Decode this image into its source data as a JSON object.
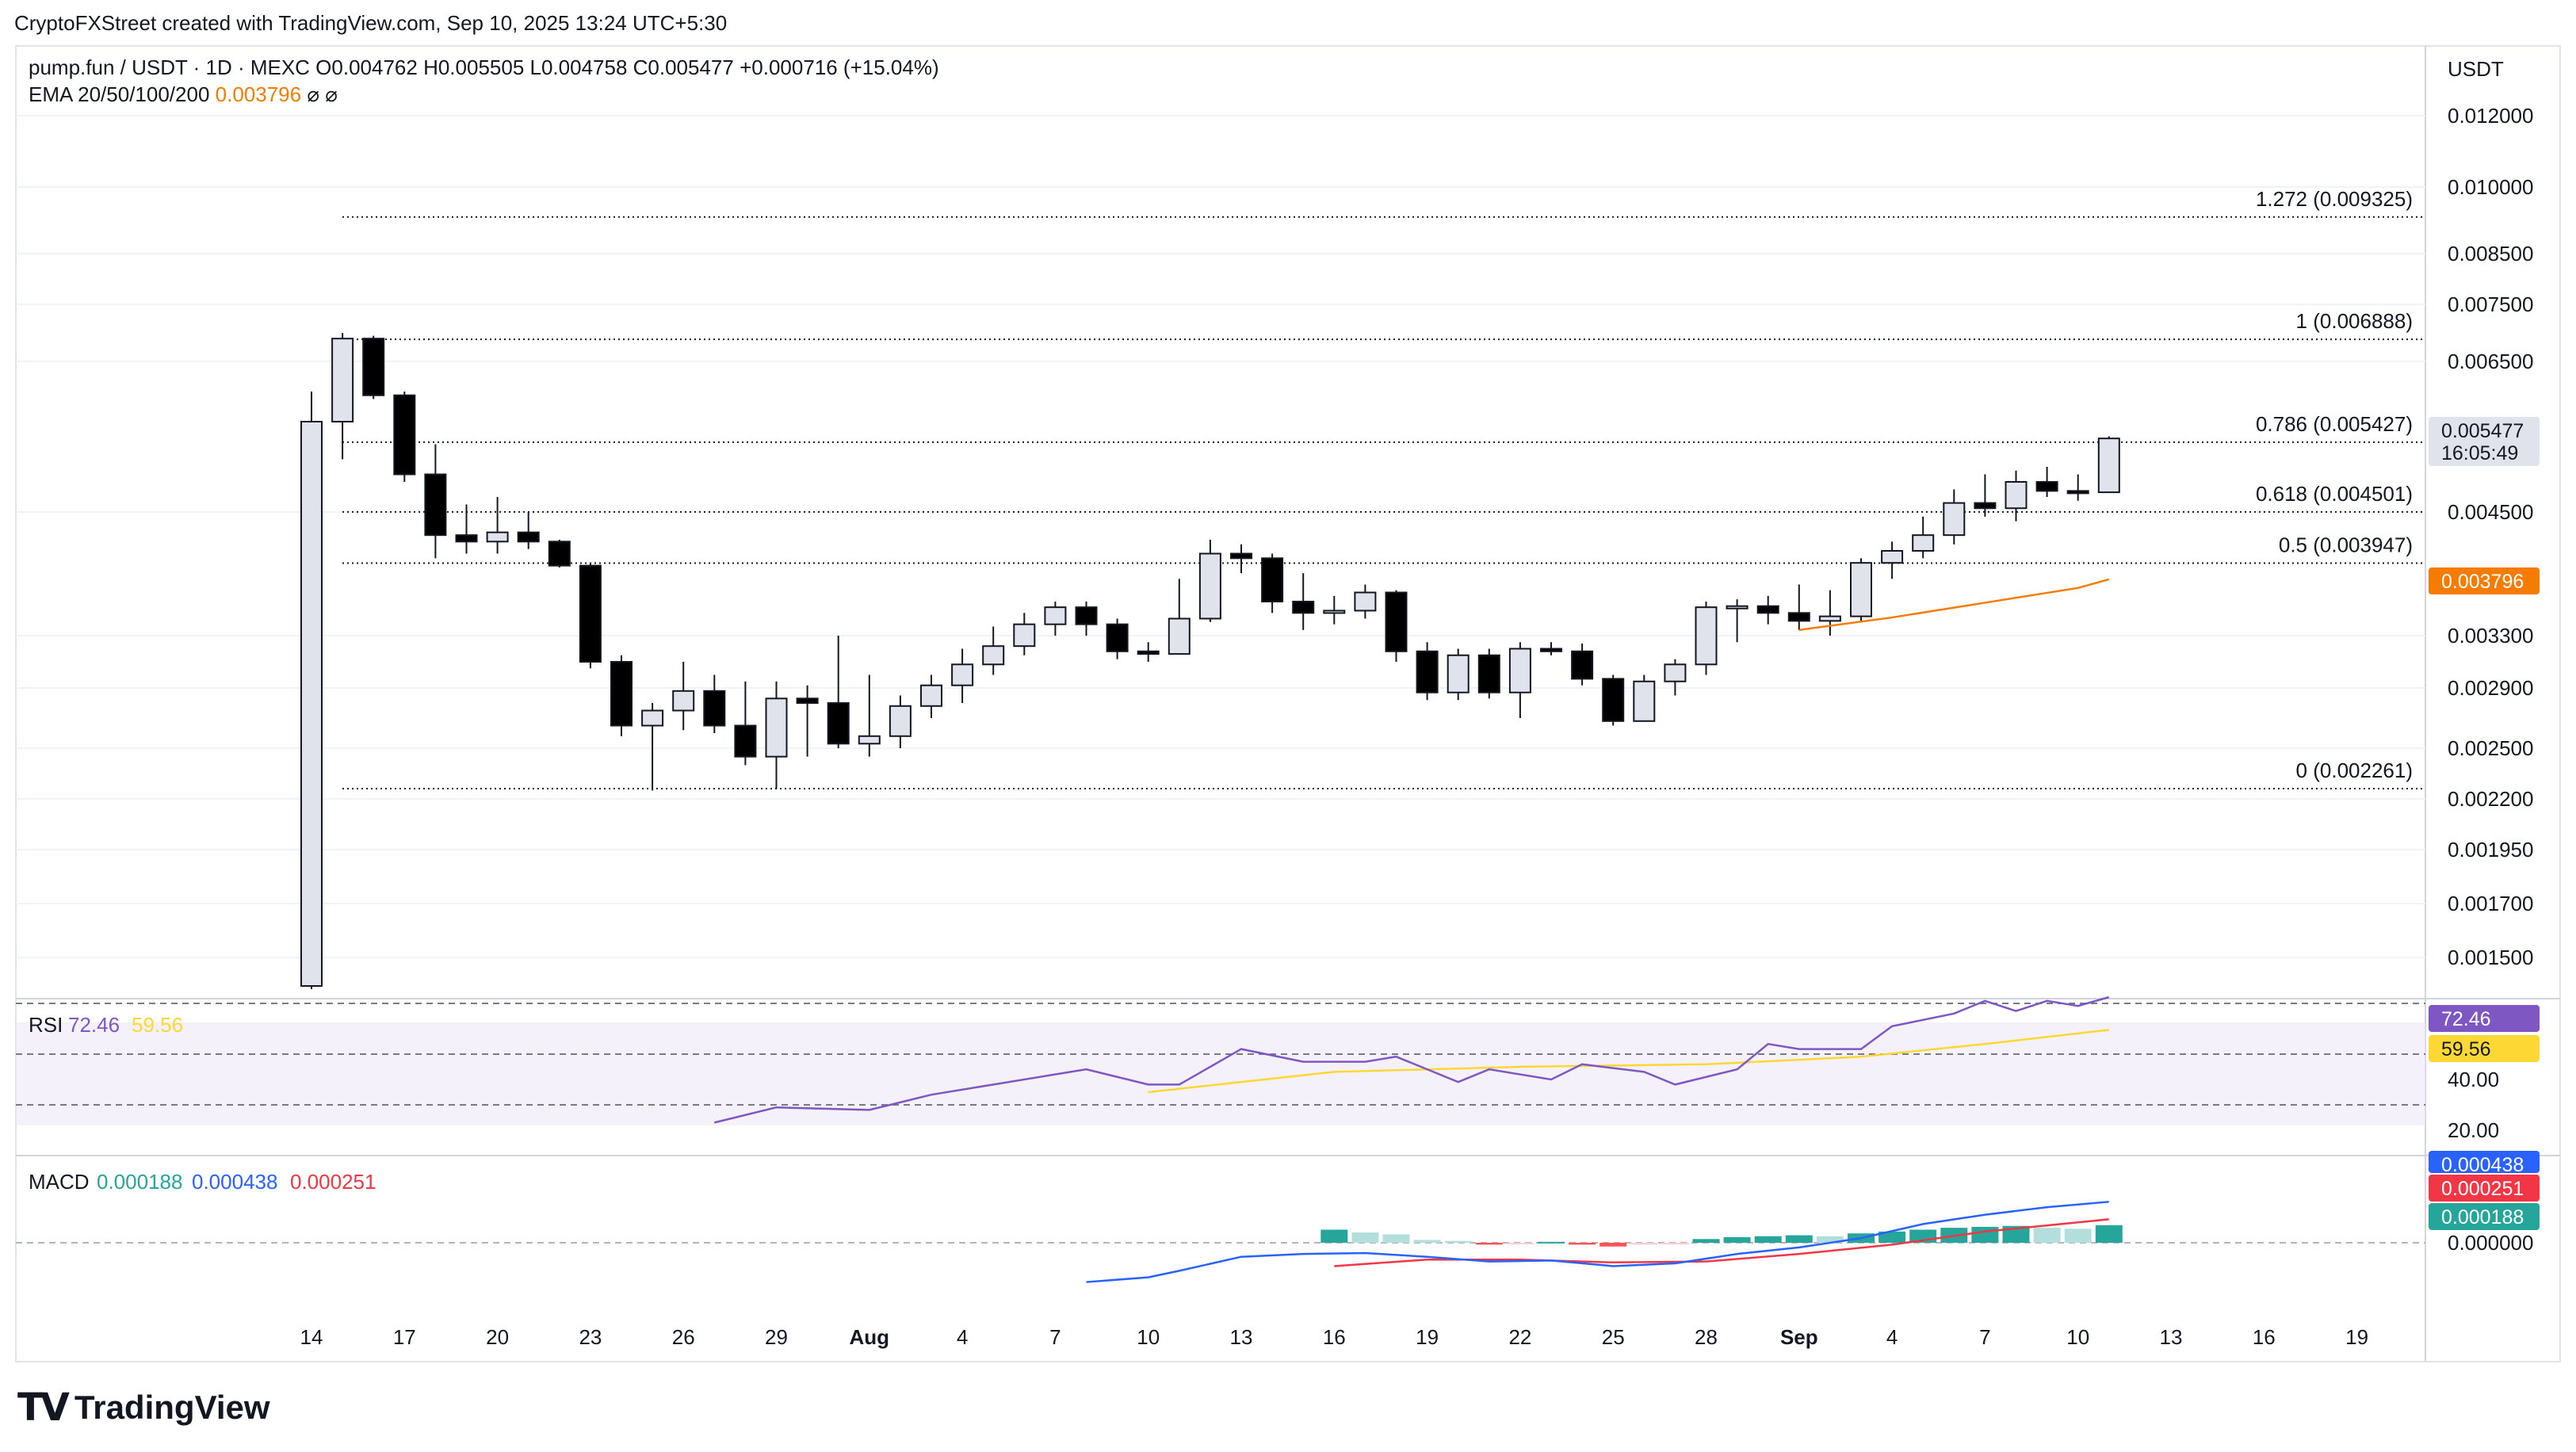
{
  "credit": "CryptoFXStreet created with TradingView.com, Sep 10, 2025 13:24 UTC+5:30",
  "header": {
    "symbol_line": "pump.fun / USDT · 1D · MEXC  O0.004762  H0.005505  L0.004758  C0.005477  +0.000716 (+15.04%)",
    "ema_label": "EMA 20/50/100/200",
    "ema_value": "0.003796",
    "ema_flags": "⌀  ⌀"
  },
  "currency_label": "USDT",
  "brand": "TradingView",
  "colors": {
    "up_candle": "#e0e3eb",
    "down_candle": "#000000",
    "ema_line": "#f57c00",
    "rsi_line": "#7e57c2",
    "rsi_ma": "#fdd835",
    "macd_line": "#2962ff",
    "signal_line": "#f23645",
    "hist_up_strong": "#26a69a",
    "hist_up_weak": "#b2dfdb",
    "hist_down_strong": "#ff5252",
    "hist_down_weak": "#ffcdd2"
  },
  "chart_data": [
    {
      "type": "candlestick",
      "title": "pump.fun / USDT · 1D · MEXC",
      "price_axis_labels": [
        "0.012000",
        "0.010000",
        "0.008500",
        "0.007500",
        "0.006500",
        "0.004500",
        "0.003300",
        "0.002900",
        "0.002500",
        "0.002200",
        "0.001950",
        "0.001700",
        "0.001500"
      ],
      "x_tick_labels": [
        "14",
        "17",
        "20",
        "23",
        "26",
        "29",
        "Aug",
        "4",
        "7",
        "10",
        "13",
        "16",
        "19",
        "22",
        "25",
        "28",
        "Sep",
        "4",
        "7",
        "10",
        "13",
        "16",
        "19"
      ],
      "last_price": "0.005477",
      "countdown": "16:05:49",
      "ema_label_value": "0.003796",
      "fibonacci": [
        {
          "label": "1.272 (0.009325)",
          "value": 0.009325
        },
        {
          "label": "1 (0.006888)",
          "value": 0.006888
        },
        {
          "label": "0.786 (0.005427)",
          "value": 0.005427
        },
        {
          "label": "0.618 (0.004501)",
          "value": 0.004501
        },
        {
          "label": "0.5 (0.003947)",
          "value": 0.003947
        },
        {
          "label": "0 (0.002261)",
          "value": 0.002261
        }
      ],
      "candles": [
        {
          "date": "2025-07-14",
          "o": 0.00132,
          "h": 0.0061,
          "l": 0.0013,
          "c": 0.0057
        },
        {
          "date": "2025-07-15",
          "o": 0.0057,
          "h": 0.007,
          "l": 0.0052,
          "c": 0.0069
        },
        {
          "date": "2025-07-16",
          "o": 0.0069,
          "h": 0.00695,
          "l": 0.006,
          "c": 0.00605
        },
        {
          "date": "2025-07-17",
          "o": 0.00605,
          "h": 0.0061,
          "l": 0.0049,
          "c": 0.005
        },
        {
          "date": "2025-07-18",
          "o": 0.005,
          "h": 0.0054,
          "l": 0.004,
          "c": 0.00425
        },
        {
          "date": "2025-07-19",
          "o": 0.00425,
          "h": 0.0046,
          "l": 0.00405,
          "c": 0.00418
        },
        {
          "date": "2025-07-20",
          "o": 0.00418,
          "h": 0.0047,
          "l": 0.00405,
          "c": 0.00428
        },
        {
          "date": "2025-07-21",
          "o": 0.00428,
          "h": 0.0045,
          "l": 0.0041,
          "c": 0.00418
        },
        {
          "date": "2025-07-22",
          "o": 0.00418,
          "h": 0.0042,
          "l": 0.0039,
          "c": 0.00392
        },
        {
          "date": "2025-07-23",
          "o": 0.00392,
          "h": 0.00395,
          "l": 0.00305,
          "c": 0.0031
        },
        {
          "date": "2025-07-24",
          "o": 0.0031,
          "h": 0.00315,
          "l": 0.00258,
          "c": 0.00265
        },
        {
          "date": "2025-07-25",
          "o": 0.00265,
          "h": 0.0028,
          "l": 0.00225,
          "c": 0.00275
        },
        {
          "date": "2025-07-26",
          "o": 0.00275,
          "h": 0.0031,
          "l": 0.00262,
          "c": 0.00288
        },
        {
          "date": "2025-07-27",
          "o": 0.00288,
          "h": 0.003,
          "l": 0.0026,
          "c": 0.00265
        },
        {
          "date": "2025-07-28",
          "o": 0.00265,
          "h": 0.00295,
          "l": 0.0024,
          "c": 0.00245
        },
        {
          "date": "2025-07-29",
          "o": 0.00245,
          "h": 0.00295,
          "l": 0.00226,
          "c": 0.00283
        },
        {
          "date": "2025-07-30",
          "o": 0.00283,
          "h": 0.00292,
          "l": 0.00245,
          "c": 0.0028
        },
        {
          "date": "2025-07-31",
          "o": 0.0028,
          "h": 0.0033,
          "l": 0.0025,
          "c": 0.00253
        },
        {
          "date": "2025-08-01",
          "o": 0.00253,
          "h": 0.003,
          "l": 0.00245,
          "c": 0.00258
        },
        {
          "date": "2025-08-02",
          "o": 0.00258,
          "h": 0.00285,
          "l": 0.0025,
          "c": 0.00278
        },
        {
          "date": "2025-08-03",
          "o": 0.00278,
          "h": 0.003,
          "l": 0.0027,
          "c": 0.00292
        },
        {
          "date": "2025-08-04",
          "o": 0.00292,
          "h": 0.0032,
          "l": 0.0028,
          "c": 0.00308
        },
        {
          "date": "2025-08-05",
          "o": 0.00308,
          "h": 0.00338,
          "l": 0.003,
          "c": 0.00322
        },
        {
          "date": "2025-08-06",
          "o": 0.00322,
          "h": 0.0035,
          "l": 0.00315,
          "c": 0.0034
        },
        {
          "date": "2025-08-07",
          "o": 0.0034,
          "h": 0.0036,
          "l": 0.0033,
          "c": 0.00355
        },
        {
          "date": "2025-08-08",
          "o": 0.00355,
          "h": 0.0036,
          "l": 0.0033,
          "c": 0.0034
        },
        {
          "date": "2025-08-09",
          "o": 0.0034,
          "h": 0.00345,
          "l": 0.00312,
          "c": 0.00318
        },
        {
          "date": "2025-08-10",
          "o": 0.00318,
          "h": 0.00325,
          "l": 0.0031,
          "c": 0.00316
        },
        {
          "date": "2025-08-11",
          "o": 0.00316,
          "h": 0.0038,
          "l": 0.00316,
          "c": 0.00345
        },
        {
          "date": "2025-08-12",
          "o": 0.00345,
          "h": 0.0042,
          "l": 0.00342,
          "c": 0.00405
        },
        {
          "date": "2025-08-13",
          "o": 0.00405,
          "h": 0.00415,
          "l": 0.00385,
          "c": 0.004
        },
        {
          "date": "2025-08-14",
          "o": 0.004,
          "h": 0.00405,
          "l": 0.0035,
          "c": 0.0036
        },
        {
          "date": "2025-08-15",
          "o": 0.0036,
          "h": 0.00385,
          "l": 0.00335,
          "c": 0.0035
        },
        {
          "date": "2025-08-16",
          "o": 0.0035,
          "h": 0.00365,
          "l": 0.0034,
          "c": 0.00352
        },
        {
          "date": "2025-08-17",
          "o": 0.00352,
          "h": 0.00375,
          "l": 0.00345,
          "c": 0.00368
        },
        {
          "date": "2025-08-18",
          "o": 0.00368,
          "h": 0.0037,
          "l": 0.0031,
          "c": 0.00318
        },
        {
          "date": "2025-08-19",
          "o": 0.00318,
          "h": 0.00325,
          "l": 0.00282,
          "c": 0.00287
        },
        {
          "date": "2025-08-20",
          "o": 0.00287,
          "h": 0.0032,
          "l": 0.00282,
          "c": 0.00315
        },
        {
          "date": "2025-08-21",
          "o": 0.00315,
          "h": 0.0032,
          "l": 0.00283,
          "c": 0.00287
        },
        {
          "date": "2025-08-22",
          "o": 0.00287,
          "h": 0.00325,
          "l": 0.0027,
          "c": 0.0032
        },
        {
          "date": "2025-08-23",
          "o": 0.0032,
          "h": 0.00325,
          "l": 0.00315,
          "c": 0.00318
        },
        {
          "date": "2025-08-24",
          "o": 0.00318,
          "h": 0.00324,
          "l": 0.00292,
          "c": 0.00297
        },
        {
          "date": "2025-08-25",
          "o": 0.00297,
          "h": 0.003,
          "l": 0.00265,
          "c": 0.00268
        },
        {
          "date": "2025-08-26",
          "o": 0.00268,
          "h": 0.003,
          "l": 0.00268,
          "c": 0.00295
        },
        {
          "date": "2025-08-27",
          "o": 0.00295,
          "h": 0.00312,
          "l": 0.00285,
          "c": 0.00308
        },
        {
          "date": "2025-08-28",
          "o": 0.00308,
          "h": 0.0036,
          "l": 0.003,
          "c": 0.00355
        },
        {
          "date": "2025-08-29",
          "o": 0.00355,
          "h": 0.00362,
          "l": 0.00325,
          "c": 0.00356
        },
        {
          "date": "2025-08-30",
          "o": 0.00356,
          "h": 0.00365,
          "l": 0.0034,
          "c": 0.0035
        },
        {
          "date": "2025-08-31",
          "o": 0.0035,
          "h": 0.00375,
          "l": 0.00335,
          "c": 0.00343
        },
        {
          "date": "2025-09-01",
          "o": 0.00343,
          "h": 0.0037,
          "l": 0.0033,
          "c": 0.00347
        },
        {
          "date": "2025-09-02",
          "o": 0.00347,
          "h": 0.004,
          "l": 0.00342,
          "c": 0.00395
        },
        {
          "date": "2025-09-03",
          "o": 0.00395,
          "h": 0.00418,
          "l": 0.0038,
          "c": 0.00408
        },
        {
          "date": "2025-09-04",
          "o": 0.00408,
          "h": 0.00445,
          "l": 0.004,
          "c": 0.00425
        },
        {
          "date": "2025-09-05",
          "o": 0.00425,
          "h": 0.0048,
          "l": 0.00415,
          "c": 0.00462
        },
        {
          "date": "2025-09-06",
          "o": 0.00462,
          "h": 0.005,
          "l": 0.00445,
          "c": 0.00455
        },
        {
          "date": "2025-09-07",
          "o": 0.00455,
          "h": 0.00505,
          "l": 0.0044,
          "c": 0.0049
        },
        {
          "date": "2025-09-08",
          "o": 0.0049,
          "h": 0.0051,
          "l": 0.0047,
          "c": 0.00478
        },
        {
          "date": "2025-09-09",
          "o": 0.00478,
          "h": 0.005,
          "l": 0.00465,
          "c": 0.00476
        },
        {
          "date": "2025-09-10",
          "o": 0.004762,
          "h": 0.005505,
          "l": 0.004758,
          "c": 0.005477
        }
      ],
      "ema20": [
        {
          "date": "2025-08-31",
          "v": 0.00335
        },
        {
          "date": "2025-09-03",
          "v": 0.00346
        },
        {
          "date": "2025-09-06",
          "v": 0.00359
        },
        {
          "date": "2025-09-09",
          "v": 0.00372
        },
        {
          "date": "2025-09-10",
          "v": 0.003796
        }
      ]
    },
    {
      "type": "line",
      "title": "RSI",
      "rsi_value": "72.46",
      "ma_value": "59.56",
      "y_tick_labels": [
        "40.00",
        "20.00"
      ],
      "bands": [
        70,
        50,
        30
      ],
      "rsi": [
        {
          "date": "2025-07-27",
          "v": 23
        },
        {
          "date": "2025-07-29",
          "v": 29
        },
        {
          "date": "2025-08-01",
          "v": 28
        },
        {
          "date": "2025-08-03",
          "v": 34
        },
        {
          "date": "2025-08-05",
          "v": 38
        },
        {
          "date": "2025-08-08",
          "v": 44
        },
        {
          "date": "2025-08-10",
          "v": 38
        },
        {
          "date": "2025-08-11",
          "v": 38
        },
        {
          "date": "2025-08-13",
          "v": 52
        },
        {
          "date": "2025-08-15",
          "v": 47
        },
        {
          "date": "2025-08-17",
          "v": 47
        },
        {
          "date": "2025-08-18",
          "v": 49
        },
        {
          "date": "2025-08-20",
          "v": 39
        },
        {
          "date": "2025-08-21",
          "v": 44
        },
        {
          "date": "2025-08-23",
          "v": 40
        },
        {
          "date": "2025-08-24",
          "v": 46
        },
        {
          "date": "2025-08-26",
          "v": 43
        },
        {
          "date": "2025-08-27",
          "v": 38
        },
        {
          "date": "2025-08-29",
          "v": 44
        },
        {
          "date": "2025-08-30",
          "v": 54
        },
        {
          "date": "2025-08-31",
          "v": 52
        },
        {
          "date": "2025-09-02",
          "v": 52
        },
        {
          "date": "2025-09-03",
          "v": 61
        },
        {
          "date": "2025-09-05",
          "v": 66
        },
        {
          "date": "2025-09-06",
          "v": 71
        },
        {
          "date": "2025-09-07",
          "v": 67
        },
        {
          "date": "2025-09-08",
          "v": 71
        },
        {
          "date": "2025-09-09",
          "v": 69
        },
        {
          "date": "2025-09-10",
          "v": 72.46
        }
      ],
      "rsi_ma": [
        {
          "date": "2025-08-10",
          "v": 35
        },
        {
          "date": "2025-08-16",
          "v": 43
        },
        {
          "date": "2025-08-22",
          "v": 45
        },
        {
          "date": "2025-08-28",
          "v": 46
        },
        {
          "date": "2025-09-02",
          "v": 49
        },
        {
          "date": "2025-09-06",
          "v": 54
        },
        {
          "date": "2025-09-10",
          "v": 59.56
        }
      ]
    },
    {
      "type": "bar",
      "title": "MACD",
      "histogram_value": "0.000188",
      "macd_value": "0.000438",
      "signal_value": "0.000251",
      "y_tick_labels": [
        "0.000000"
      ],
      "macd": [
        {
          "date": "2025-08-08",
          "v": -0.00042
        },
        {
          "date": "2025-08-10",
          "v": -0.00037
        },
        {
          "date": "2025-08-11",
          "v": -0.0003
        },
        {
          "date": "2025-08-13",
          "v": -0.00015
        },
        {
          "date": "2025-08-15",
          "v": -0.00012
        },
        {
          "date": "2025-08-17",
          "v": -0.00011
        },
        {
          "date": "2025-08-19",
          "v": -0.00015
        },
        {
          "date": "2025-08-21",
          "v": -0.0002
        },
        {
          "date": "2025-08-23",
          "v": -0.00019
        },
        {
          "date": "2025-08-25",
          "v": -0.00025
        },
        {
          "date": "2025-08-27",
          "v": -0.00022
        },
        {
          "date": "2025-08-29",
          "v": -0.00012
        },
        {
          "date": "2025-08-31",
          "v": -5e-05
        },
        {
          "date": "2025-09-02",
          "v": 5e-05
        },
        {
          "date": "2025-09-04",
          "v": 0.0002
        },
        {
          "date": "2025-09-06",
          "v": 0.0003
        },
        {
          "date": "2025-09-08",
          "v": 0.00038
        },
        {
          "date": "2025-09-10",
          "v": 0.000438
        }
      ],
      "signal": [
        {
          "date": "2025-08-16",
          "v": -0.00025
        },
        {
          "date": "2025-08-19",
          "v": -0.00018
        },
        {
          "date": "2025-08-22",
          "v": -0.00018
        },
        {
          "date": "2025-08-25",
          "v": -0.00021
        },
        {
          "date": "2025-08-28",
          "v": -0.0002
        },
        {
          "date": "2025-08-31",
          "v": -0.00012
        },
        {
          "date": "2025-09-03",
          "v": -2e-05
        },
        {
          "date": "2025-09-06",
          "v": 0.00012
        },
        {
          "date": "2025-09-10",
          "v": 0.000251
        }
      ],
      "histogram": [
        {
          "date": "2025-08-16",
          "v": 0.00014
        },
        {
          "date": "2025-08-17",
          "v": 0.00011
        },
        {
          "date": "2025-08-18",
          "v": 9e-05
        },
        {
          "date": "2025-08-19",
          "v": 3e-05
        },
        {
          "date": "2025-08-20",
          "v": 2e-05
        },
        {
          "date": "2025-08-21",
          "v": -2e-05
        },
        {
          "date": "2025-08-22",
          "v": -1e-05
        },
        {
          "date": "2025-08-23",
          "v": 1e-05
        },
        {
          "date": "2025-08-24",
          "v": -2e-05
        },
        {
          "date": "2025-08-25",
          "v": -4e-05
        },
        {
          "date": "2025-08-26",
          "v": -2e-05
        },
        {
          "date": "2025-08-27",
          "v": -1e-05
        },
        {
          "date": "2025-08-28",
          "v": 4e-05
        },
        {
          "date": "2025-08-29",
          "v": 6e-05
        },
        {
          "date": "2025-08-30",
          "v": 7e-05
        },
        {
          "date": "2025-08-31",
          "v": 8e-05
        },
        {
          "date": "2025-09-01",
          "v": 7e-05
        },
        {
          "date": "2025-09-02",
          "v": 0.0001
        },
        {
          "date": "2025-09-03",
          "v": 0.00012
        },
        {
          "date": "2025-09-04",
          "v": 0.00014
        },
        {
          "date": "2025-09-05",
          "v": 0.00016
        },
        {
          "date": "2025-09-06",
          "v": 0.00017
        },
        {
          "date": "2025-09-07",
          "v": 0.00018
        },
        {
          "date": "2025-09-08",
          "v": 0.00016
        },
        {
          "date": "2025-09-09",
          "v": 0.00015
        },
        {
          "date": "2025-09-10",
          "v": 0.000188
        }
      ]
    }
  ]
}
